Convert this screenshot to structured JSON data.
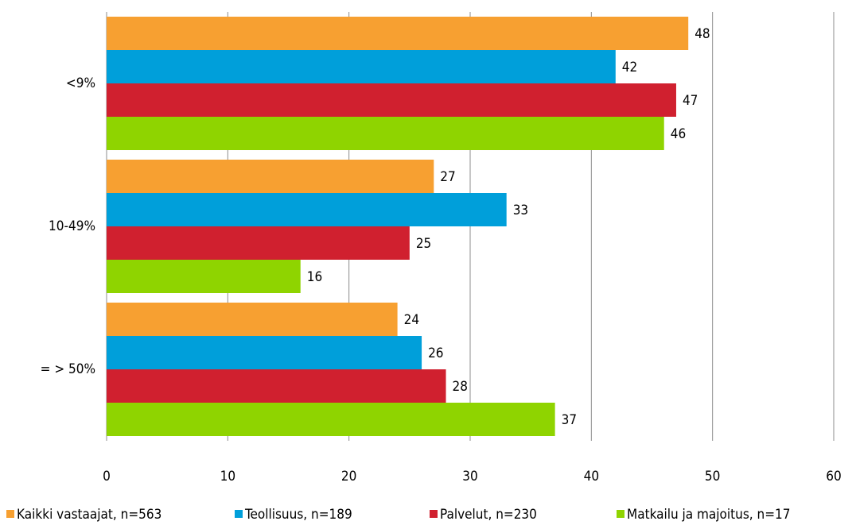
{
  "chart_data": {
    "type": "hbar",
    "categories": [
      "<9%",
      "10-49%",
      "= > 50%"
    ],
    "series": [
      {
        "name": "Kaikki vastaajat, n=563",
        "color": "#f7a031",
        "values": [
          48,
          27,
          24
        ]
      },
      {
        "name": "Teollisuus, n=189",
        "color": "#009fda",
        "values": [
          42,
          33,
          26
        ]
      },
      {
        "name": "Palvelut, n=230",
        "color": "#d0202f",
        "values": [
          47,
          25,
          28
        ]
      },
      {
        "name": "Matkailu ja majoitus, n=17",
        "color": "#8fd400",
        "values": [
          46,
          16,
          37
        ]
      }
    ],
    "xlim": [
      0,
      60
    ],
    "xticks": [
      0,
      10,
      20,
      30,
      40,
      50,
      60
    ],
    "grid": true,
    "legend": "bottom"
  }
}
